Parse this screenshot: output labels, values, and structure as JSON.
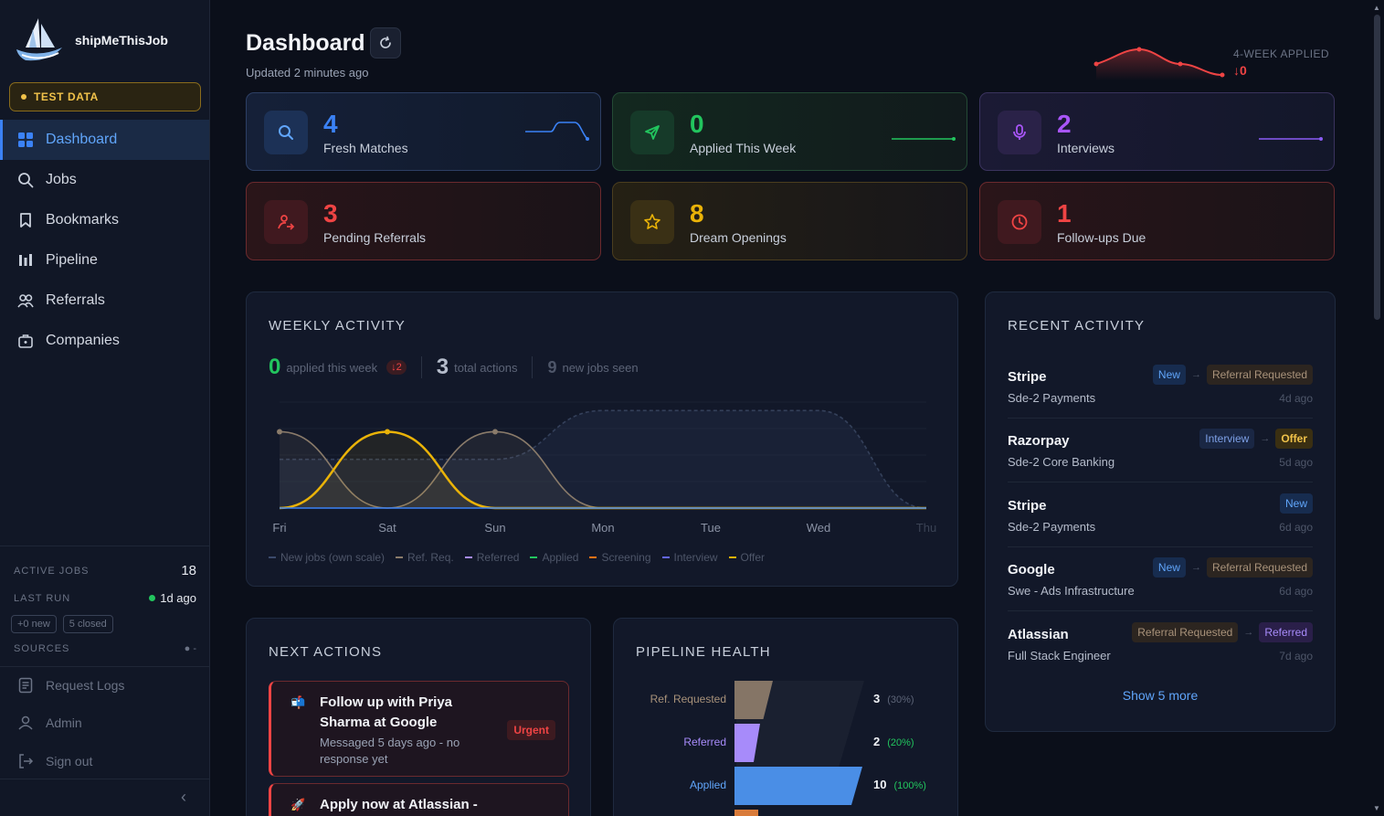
{
  "brand": {
    "name": "shipMeThisJob"
  },
  "sidebar": {
    "test_badge": "TEST DATA",
    "nav": [
      {
        "label": "Dashboard",
        "icon": "grid-icon",
        "active": true
      },
      {
        "label": "Jobs",
        "icon": "search-icon"
      },
      {
        "label": "Bookmarks",
        "icon": "bookmark-icon"
      },
      {
        "label": "Pipeline",
        "icon": "bar-chart-icon"
      },
      {
        "label": "Referrals",
        "icon": "users-icon"
      },
      {
        "label": "Companies",
        "icon": "briefcase-icon"
      }
    ],
    "active_jobs_label": "ACTIVE JOBS",
    "active_jobs_value": "18",
    "last_run_label": "LAST RUN",
    "last_run_value": "1d ago",
    "chip_new": "+0 new",
    "chip_closed": "5 closed",
    "sources_label": "SOURCES",
    "sources_value": "-",
    "footer": [
      {
        "label": "Request Logs",
        "icon": "document-icon"
      },
      {
        "label": "Admin",
        "icon": "user-icon"
      },
      {
        "label": "Sign out",
        "icon": "sign-out-icon"
      }
    ],
    "collapse": "‹"
  },
  "header": {
    "title": "Dashboard",
    "updated": "Updated 2 minutes ago",
    "week_label": "4-WEEK APPLIED",
    "week_value": "↓0"
  },
  "stats": [
    {
      "value": "4",
      "label": "Fresh Matches",
      "icon": "search-icon",
      "color": "#3b82f6"
    },
    {
      "value": "0",
      "label": "Applied This Week",
      "icon": "send-icon",
      "color": "#22c55e"
    },
    {
      "value": "2",
      "label": "Interviews",
      "icon": "microphone-icon",
      "color": "#a855f7"
    },
    {
      "value": "3",
      "label": "Pending Referrals",
      "icon": "user-arrow-icon",
      "color": "#ef4444"
    },
    {
      "value": "8",
      "label": "Dream Openings",
      "icon": "star-icon",
      "color": "#eab308"
    },
    {
      "value": "1",
      "label": "Follow-ups Due",
      "icon": "clock-icon",
      "color": "#ef4444"
    }
  ],
  "weekly": {
    "title": "WEEKLY ACTIVITY",
    "applied": "0",
    "applied_label": "applied this week",
    "applied_delta": "↓2",
    "actions": "3",
    "actions_label": "total actions",
    "seen": "9",
    "seen_label": "new jobs seen",
    "legend": [
      {
        "label": "New jobs (own scale)",
        "color": "#3b4a6b"
      },
      {
        "label": "Ref. Req.",
        "color": "#8a7b6a"
      },
      {
        "label": "Referred",
        "color": "#a78bfa"
      },
      {
        "label": "Applied",
        "color": "#22c55e"
      },
      {
        "label": "Screening",
        "color": "#f97316"
      },
      {
        "label": "Interview",
        "color": "#6366f1"
      },
      {
        "label": "Offer",
        "color": "#eab308"
      }
    ]
  },
  "chart_data": {
    "type": "area",
    "categories": [
      "Fri",
      "Sat",
      "Sun",
      "Mon",
      "Tue",
      "Wed",
      "Thu"
    ],
    "series": [
      {
        "name": "New jobs (own scale)",
        "values": [
          0.5,
          0.5,
          0.5,
          1,
          1,
          1,
          0
        ]
      },
      {
        "name": "Ref. Req.",
        "values": [
          1,
          0,
          1,
          0,
          0,
          0,
          0
        ]
      },
      {
        "name": "Offer",
        "values": [
          0,
          1,
          0,
          0,
          0,
          0,
          0
        ]
      },
      {
        "name": "Applied",
        "values": [
          0,
          0,
          0,
          0,
          0,
          0,
          0
        ]
      }
    ]
  },
  "recent": {
    "title": "RECENT ACTIVITY",
    "items": [
      {
        "company": "Stripe",
        "role": "Sde-2 Payments",
        "ago": "4d ago",
        "from": "New",
        "to": "Referral Requested"
      },
      {
        "company": "Razorpay",
        "role": "Sde-2 Core Banking",
        "ago": "5d ago",
        "from": "Interview",
        "to": "Offer"
      },
      {
        "company": "Stripe",
        "role": "Sde-2 Payments",
        "ago": "6d ago",
        "from": "",
        "to": "New"
      },
      {
        "company": "Google",
        "role": "Swe - Ads Infrastructure",
        "ago": "6d ago",
        "from": "New",
        "to": "Referral Requested"
      },
      {
        "company": "Atlassian",
        "role": "Full Stack Engineer",
        "ago": "7d ago",
        "from": "Referral Requested",
        "to": "Referred"
      }
    ],
    "show_more": "Show 5 more"
  },
  "next_actions": {
    "title": "NEXT ACTIONS",
    "items": [
      {
        "emoji": "📬",
        "title": "Follow up with Priya Sharma at Google",
        "sub": "Messaged 5 days ago - no response yet",
        "badge": "Urgent"
      },
      {
        "emoji": "🚀",
        "title": "Apply now at Atlassian -",
        "sub": "",
        "badge": ""
      }
    ]
  },
  "pipeline": {
    "title": "PIPELINE HEALTH",
    "rows": [
      {
        "label": "Ref. Requested",
        "count": "3",
        "pct": "(30%)",
        "color": "#857566",
        "label_color": "#a8927a",
        "pct_color": "#5d6578",
        "fraction": 0.3
      },
      {
        "label": "Referred",
        "count": "2",
        "pct": "(20%)",
        "color": "#a78bfa",
        "label_color": "#a78bfa",
        "pct_color": "#22c55e",
        "fraction": 0.2
      },
      {
        "label": "Applied",
        "count": "10",
        "pct": "(100%)",
        "color": "#4a8ee6",
        "label_color": "#60a5fa",
        "pct_color": "#22c55e",
        "fraction": 1.0
      }
    ]
  }
}
